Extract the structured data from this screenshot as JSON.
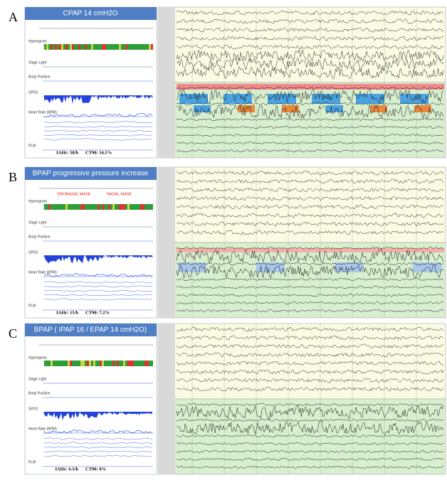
{
  "panels": [
    {
      "label": "A",
      "title": "CPAP 14 cmH2O",
      "rows": [
        "Hypnogram",
        "Stage Light",
        "Body Position",
        "SPO2",
        "Heart Rate (BPM)",
        "PLM"
      ],
      "iah": "IAHr: 58/h",
      "ct90": "CT90: 34.5%"
    },
    {
      "label": "B",
      "title": "BPAP progressive pressure increase",
      "masks": [
        "ORONASAL MASK",
        "NASAL MASK"
      ],
      "rows": [
        "Hypnogram",
        "Stage Light",
        "Body Position",
        "SPO2",
        "Heart Rate (BPM)",
        "PLM"
      ],
      "iah": "IAHr: 15/h",
      "ct90": "CT90: 7.2%"
    },
    {
      "label": "C",
      "title": "BPAP ( IPAP 16 / EPAP 14 cmH2O)",
      "rows": [
        "Hypnogram",
        "Stage Light",
        "Body Position",
        "SPO2",
        "Heart Rate (BPM)",
        "PLM"
      ],
      "iah": "IAHr: 6.5/h",
      "ct90": "CT90: 0%"
    }
  ]
}
